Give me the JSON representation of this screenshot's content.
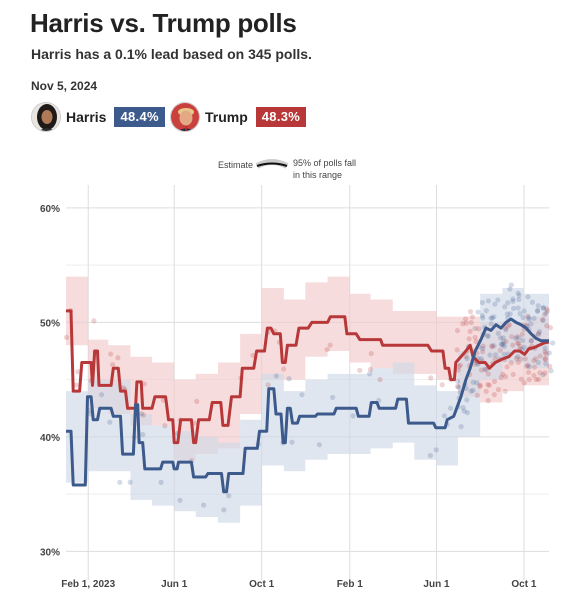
{
  "header": {
    "title": "Harris vs. Trump polls",
    "subtitle": "Harris has a 0.1% lead based on 345 polls.",
    "date": "Nov 5, 2024"
  },
  "candidates": [
    {
      "name": "Harris",
      "value": "48.4%",
      "color": "#3c5a8c",
      "avatar": "harris-portrait-icon"
    },
    {
      "name": "Trump",
      "value": "48.3%",
      "color": "#b8383a",
      "avatar": "trump-portrait-icon"
    }
  ],
  "legend": {
    "estimate_label": "Estimate",
    "range_label_line1": "95% of polls fall",
    "range_label_line2": "in this range"
  },
  "chart_data": {
    "type": "line",
    "title": "Harris vs. Trump polls",
    "x_range": [
      "2023-01-01",
      "2024-11-05"
    ],
    "ylim": [
      27.5,
      62
    ],
    "y_ticks": [
      30,
      40,
      50,
      60
    ],
    "y_tick_labels": [
      "30%",
      "40%",
      "50%",
      "60%"
    ],
    "x_ticks": [
      "2023-02-01",
      "2023-06-01",
      "2023-10-01",
      "2024-02-01",
      "2024-06-01",
      "2024-10-01"
    ],
    "x_tick_labels": [
      "Feb 1, 2023",
      "Jun 1",
      "Oct 1",
      "Feb 1",
      "Jun 1",
      "Oct 1"
    ],
    "grid": true,
    "series": [
      {
        "name": "Trump",
        "color": "#b8383a",
        "points": [
          [
            "2023-01-01",
            51.0
          ],
          [
            "2023-01-08",
            51.0
          ],
          [
            "2023-01-11",
            44.0
          ],
          [
            "2023-01-20",
            44.0
          ],
          [
            "2023-01-23",
            46.5
          ],
          [
            "2023-02-05",
            46.5
          ],
          [
            "2023-02-07",
            44.5
          ],
          [
            "2023-02-10",
            47.5
          ],
          [
            "2023-02-14",
            47.5
          ],
          [
            "2023-02-16",
            44.5
          ],
          [
            "2023-03-05",
            44.5
          ],
          [
            "2023-03-08",
            46.0
          ],
          [
            "2023-03-15",
            46.0
          ],
          [
            "2023-03-18",
            44.0
          ],
          [
            "2023-03-25",
            44.0
          ],
          [
            "2023-03-28",
            42.5
          ],
          [
            "2023-04-08",
            42.5
          ],
          [
            "2023-04-10",
            44.8
          ],
          [
            "2023-04-16",
            44.8
          ],
          [
            "2023-04-18",
            42.5
          ],
          [
            "2023-05-01",
            42.5
          ],
          [
            "2023-05-05",
            43.5
          ],
          [
            "2023-05-20",
            43.5
          ],
          [
            "2023-05-24",
            41.5
          ],
          [
            "2023-05-30",
            41.5
          ],
          [
            "2023-06-01",
            39.5
          ],
          [
            "2023-06-06",
            39.5
          ],
          [
            "2023-06-10",
            41.5
          ],
          [
            "2023-06-25",
            41.5
          ],
          [
            "2023-06-28",
            39.5
          ],
          [
            "2023-07-01",
            39.5
          ],
          [
            "2023-07-05",
            41.5
          ],
          [
            "2023-07-20",
            41.5
          ],
          [
            "2023-07-24",
            43.0
          ],
          [
            "2023-08-05",
            43.0
          ],
          [
            "2023-08-08",
            41.0
          ],
          [
            "2023-08-15",
            41.0
          ],
          [
            "2023-08-20",
            43.5
          ],
          [
            "2023-09-01",
            43.5
          ],
          [
            "2023-09-04",
            46.0
          ],
          [
            "2023-09-20",
            46.0
          ],
          [
            "2023-09-24",
            47.5
          ],
          [
            "2023-10-05",
            47.5
          ],
          [
            "2023-10-09",
            49.5
          ],
          [
            "2023-10-14",
            49.5
          ],
          [
            "2023-10-18",
            49.0
          ],
          [
            "2023-10-27",
            49.0
          ],
          [
            "2023-10-30",
            46.5
          ],
          [
            "2023-11-03",
            46.5
          ],
          [
            "2023-11-06",
            48.0
          ],
          [
            "2023-11-18",
            48.0
          ],
          [
            "2023-11-22",
            49.5
          ],
          [
            "2023-12-05",
            49.5
          ],
          [
            "2023-12-10",
            50.0
          ],
          [
            "2024-01-01",
            50.0
          ],
          [
            "2024-01-05",
            50.5
          ],
          [
            "2024-01-25",
            50.5
          ],
          [
            "2024-01-28",
            49.0
          ],
          [
            "2024-02-10",
            49.0
          ],
          [
            "2024-02-15",
            48.5
          ],
          [
            "2024-03-01",
            48.5
          ],
          [
            "2024-03-05",
            48.5
          ],
          [
            "2024-03-15",
            48.5
          ],
          [
            "2024-03-18",
            48.0
          ],
          [
            "2024-05-20",
            48.0
          ],
          [
            "2024-05-25",
            47.5
          ],
          [
            "2024-06-10",
            47.5
          ],
          [
            "2024-06-13",
            46.0
          ],
          [
            "2024-06-18",
            46.0
          ],
          [
            "2024-06-21",
            45.0
          ],
          [
            "2024-06-26",
            45.0
          ],
          [
            "2024-06-28",
            46.5
          ],
          [
            "2024-07-05",
            47.0
          ],
          [
            "2024-07-12",
            47.5
          ],
          [
            "2024-07-18",
            48.0
          ],
          [
            "2024-07-22",
            47.0
          ],
          [
            "2024-07-30",
            46.5
          ],
          [
            "2024-08-08",
            46.5
          ],
          [
            "2024-08-14",
            46.0
          ],
          [
            "2024-08-22",
            46.5
          ],
          [
            "2024-09-01",
            46.8
          ],
          [
            "2024-09-10",
            47.0
          ],
          [
            "2024-09-18",
            47.5
          ],
          [
            "2024-09-25",
            47.5
          ],
          [
            "2024-10-02",
            47.2
          ],
          [
            "2024-10-08",
            47.7
          ],
          [
            "2024-10-15",
            47.8
          ],
          [
            "2024-10-22",
            48.0
          ],
          [
            "2024-10-29",
            48.2
          ],
          [
            "2024-11-05",
            48.3
          ]
        ],
        "band": [
          [
            "2023-01-01",
            48.0,
            54.0
          ],
          [
            "2023-02-01",
            42.5,
            48.5
          ],
          [
            "2023-03-01",
            42.0,
            48.0
          ],
          [
            "2023-04-01",
            41.0,
            47.0
          ],
          [
            "2023-05-01",
            41.0,
            46.5
          ],
          [
            "2023-06-01",
            38.0,
            45.0
          ],
          [
            "2023-07-01",
            38.5,
            45.5
          ],
          [
            "2023-08-01",
            39.0,
            46.5
          ],
          [
            "2023-09-01",
            42.0,
            49.0
          ],
          [
            "2023-10-01",
            45.0,
            53.0
          ],
          [
            "2023-11-01",
            45.0,
            52.0
          ],
          [
            "2023-12-01",
            47.0,
            53.5
          ],
          [
            "2024-01-01",
            47.5,
            54.0
          ],
          [
            "2024-02-01",
            46.5,
            52.5
          ],
          [
            "2024-03-01",
            46.0,
            52.0
          ],
          [
            "2024-04-01",
            45.5,
            51.0
          ],
          [
            "2024-05-01",
            45.5,
            51.0
          ],
          [
            "2024-06-01",
            45.0,
            50.5
          ],
          [
            "2024-07-01",
            43.5,
            50.5
          ],
          [
            "2024-08-01",
            43.0,
            50.0
          ],
          [
            "2024-09-01",
            44.0,
            50.0
          ],
          [
            "2024-10-01",
            44.5,
            50.5
          ],
          [
            "2024-11-05",
            45.0,
            51.0
          ]
        ]
      },
      {
        "name": "Harris",
        "color": "#3c5a8c",
        "points": [
          [
            "2023-01-01",
            40.5
          ],
          [
            "2023-01-08",
            40.5
          ],
          [
            "2023-01-11",
            35.8
          ],
          [
            "2023-01-28",
            35.8
          ],
          [
            "2023-01-31",
            43.5
          ],
          [
            "2023-02-05",
            43.5
          ],
          [
            "2023-02-08",
            41.5
          ],
          [
            "2023-02-14",
            41.5
          ],
          [
            "2023-02-17",
            42.5
          ],
          [
            "2023-03-05",
            42.5
          ],
          [
            "2023-03-08",
            41.8
          ],
          [
            "2023-03-18",
            41.8
          ],
          [
            "2023-03-21",
            38.5
          ],
          [
            "2023-04-05",
            38.5
          ],
          [
            "2023-04-08",
            42.8
          ],
          [
            "2023-04-11",
            42.8
          ],
          [
            "2023-04-13",
            39.5
          ],
          [
            "2023-04-18",
            39.5
          ],
          [
            "2023-04-21",
            37.2
          ],
          [
            "2023-05-13",
            37.2
          ],
          [
            "2023-05-16",
            37.8
          ],
          [
            "2023-05-30",
            37.8
          ],
          [
            "2023-06-01",
            37.2
          ],
          [
            "2023-06-05",
            37.2
          ],
          [
            "2023-06-07",
            37.8
          ],
          [
            "2023-06-25",
            37.8
          ],
          [
            "2023-06-28",
            36.5
          ],
          [
            "2023-07-15",
            36.5
          ],
          [
            "2023-07-18",
            36.8
          ],
          [
            "2023-08-06",
            36.8
          ],
          [
            "2023-08-09",
            35.2
          ],
          [
            "2023-08-13",
            35.2
          ],
          [
            "2023-08-16",
            36.8
          ],
          [
            "2023-09-05",
            36.8
          ],
          [
            "2023-09-08",
            39.0
          ],
          [
            "2023-09-25",
            39.0
          ],
          [
            "2023-09-28",
            40.5
          ],
          [
            "2023-10-08",
            40.5
          ],
          [
            "2023-10-11",
            44.2
          ],
          [
            "2023-10-18",
            44.2
          ],
          [
            "2023-10-21",
            42.0
          ],
          [
            "2023-10-28",
            42.0
          ],
          [
            "2023-10-31",
            39.5
          ],
          [
            "2023-11-03",
            39.5
          ],
          [
            "2023-11-06",
            42.5
          ],
          [
            "2023-11-10",
            42.5
          ],
          [
            "2023-11-13",
            41.2
          ],
          [
            "2023-11-20",
            41.2
          ],
          [
            "2023-11-23",
            41.8
          ],
          [
            "2023-12-15",
            41.8
          ],
          [
            "2023-12-18",
            42.0
          ],
          [
            "2024-01-10",
            42.0
          ],
          [
            "2024-01-13",
            42.5
          ],
          [
            "2024-02-10",
            42.5
          ],
          [
            "2024-02-13",
            41.8
          ],
          [
            "2024-02-28",
            41.8
          ],
          [
            "2024-03-02",
            43.0
          ],
          [
            "2024-03-10",
            43.0
          ],
          [
            "2024-03-13",
            42.5
          ],
          [
            "2024-04-05",
            42.5
          ],
          [
            "2024-04-08",
            43.3
          ],
          [
            "2024-04-20",
            43.3
          ],
          [
            "2024-04-23",
            41.2
          ],
          [
            "2024-05-28",
            41.2
          ],
          [
            "2024-05-31",
            40.8
          ],
          [
            "2024-06-13",
            40.8
          ],
          [
            "2024-06-16",
            41.5
          ],
          [
            "2024-06-25",
            41.8
          ],
          [
            "2024-07-05",
            43.5
          ],
          [
            "2024-07-12",
            45.0
          ],
          [
            "2024-07-18",
            46.0
          ],
          [
            "2024-07-25",
            47.5
          ],
          [
            "2024-08-02",
            48.5
          ],
          [
            "2024-08-09",
            49.5
          ],
          [
            "2024-08-16",
            49.3
          ],
          [
            "2024-08-23",
            49.8
          ],
          [
            "2024-08-30",
            49.5
          ],
          [
            "2024-09-06",
            50.0
          ],
          [
            "2024-09-13",
            50.3
          ],
          [
            "2024-09-20",
            50.0
          ],
          [
            "2024-09-27",
            49.8
          ],
          [
            "2024-10-04",
            49.5
          ],
          [
            "2024-10-11",
            49.0
          ],
          [
            "2024-10-18",
            48.6
          ],
          [
            "2024-10-25",
            48.4
          ],
          [
            "2024-11-05",
            48.4
          ]
        ],
        "band": [
          [
            "2023-01-01",
            36.0,
            44.0
          ],
          [
            "2023-02-01",
            37.0,
            45.0
          ],
          [
            "2023-03-01",
            37.0,
            45.0
          ],
          [
            "2023-04-01",
            34.5,
            42.0
          ],
          [
            "2023-05-01",
            34.0,
            41.0
          ],
          [
            "2023-06-01",
            33.5,
            40.5
          ],
          [
            "2023-07-01",
            33.0,
            40.0
          ],
          [
            "2023-08-01",
            32.5,
            39.5
          ],
          [
            "2023-09-01",
            34.0,
            41.5
          ],
          [
            "2023-10-01",
            37.5,
            45.5
          ],
          [
            "2023-11-01",
            37.0,
            44.0
          ],
          [
            "2023-12-01",
            38.0,
            45.0
          ],
          [
            "2024-01-01",
            38.5,
            45.5
          ],
          [
            "2024-02-01",
            38.5,
            45.5
          ],
          [
            "2024-03-01",
            39.0,
            46.0
          ],
          [
            "2024-04-01",
            39.5,
            46.5
          ],
          [
            "2024-05-01",
            38.0,
            44.5
          ],
          [
            "2024-06-01",
            37.5,
            44.0
          ],
          [
            "2024-07-01",
            40.0,
            47.5
          ],
          [
            "2024-08-01",
            45.0,
            52.5
          ],
          [
            "2024-09-01",
            46.5,
            53.0
          ],
          [
            "2024-10-01",
            46.0,
            52.5
          ],
          [
            "2024-11-05",
            45.5,
            51.5
          ]
        ]
      }
    ]
  }
}
